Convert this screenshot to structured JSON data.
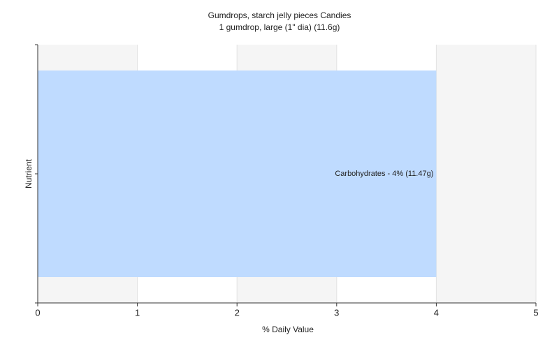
{
  "chart_data": {
    "type": "hbar",
    "title": "Gumdrops, starch jelly pieces Candies",
    "subtitle": "1 gumdrop, large (1\" dia) (11.6g)",
    "xlabel": "% Daily Value",
    "ylabel": "Nutrient",
    "categories": [
      null
    ],
    "values": [
      4
    ],
    "value_labels": [
      "Carbohydrates - 4% (11.47g)"
    ],
    "color": "#bfdbff",
    "xlim": [
      0,
      5
    ],
    "xticks": [
      0,
      1,
      2,
      3,
      4,
      5
    ],
    "grid": true
  }
}
